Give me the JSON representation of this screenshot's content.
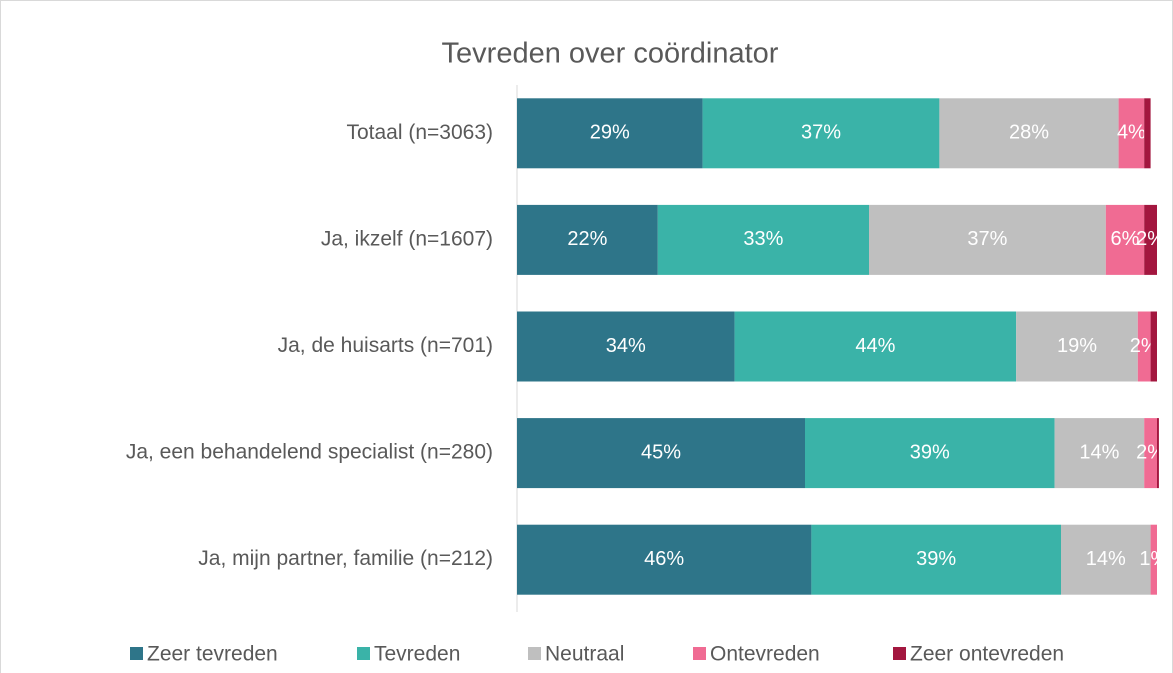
{
  "chart_data": {
    "type": "stacked_barh",
    "title": "Tevreden over coördinator",
    "categories": [
      "Totaal (n=3063)",
      "Ja, ikzelf (n=1607)",
      "Ja, de huisarts (n=701)",
      "Ja, een behandelend specialist (n=280)",
      "Ja, mijn partner, familie (n=212)"
    ],
    "xlim": [
      0,
      100
    ],
    "legend": "bottom",
    "series": [
      {
        "name": "Zeer tevreden",
        "color": "#2e7589",
        "values": [
          29,
          22,
          34,
          45,
          46
        ],
        "value_labels": [
          "29%",
          "22%",
          "34%",
          "45%",
          "46%"
        ]
      },
      {
        "name": "Tevreden",
        "color": "#3ab3a8",
        "values": [
          37,
          33,
          44,
          39,
          39
        ],
        "value_labels": [
          "37%",
          "33%",
          "44%",
          "39%",
          "39%"
        ]
      },
      {
        "name": "Neutraal",
        "color": "#bfbfbf",
        "values": [
          28,
          37,
          19,
          14,
          14
        ],
        "value_labels": [
          "28%",
          "37%",
          "19%",
          "14%",
          "14%"
        ]
      },
      {
        "name": "Ontevreden",
        "color": "#f06b93",
        "values": [
          4,
          6,
          2,
          2,
          1
        ],
        "value_labels": [
          "4%",
          "6%",
          "2%",
          "2%",
          "1%"
        ]
      },
      {
        "name": "Zeer ontevreden",
        "color": "#a3173f",
        "values": [
          1,
          2,
          1,
          0.3,
          0
        ],
        "value_labels": [
          null,
          "2%",
          null,
          null,
          null
        ]
      }
    ]
  }
}
